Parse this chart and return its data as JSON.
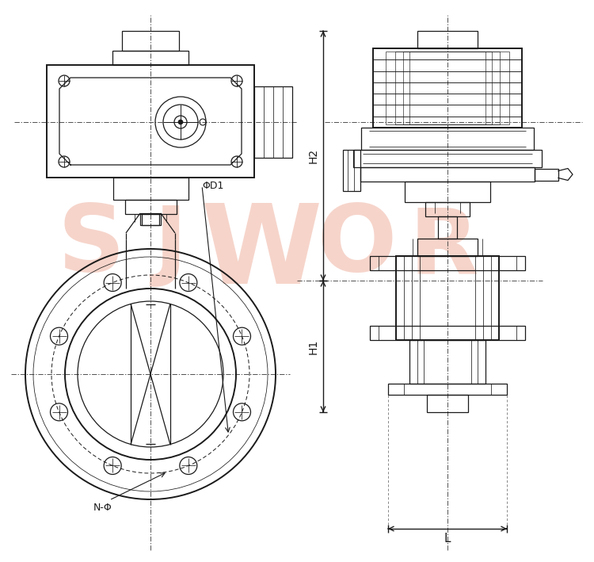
{
  "bg_color": "#ffffff",
  "line_color": "#1a1a1a",
  "watermark_color": "#f0b8a8",
  "label_H2": "H2",
  "label_H1": "H1",
  "label_L": "L",
  "label_D1": "ΦD1",
  "label_N": "N-Φ",
  "fig_width": 7.5,
  "fig_height": 7.09,
  "lw": 0.9,
  "lw_thick": 1.4,
  "lw_thin": 0.55
}
